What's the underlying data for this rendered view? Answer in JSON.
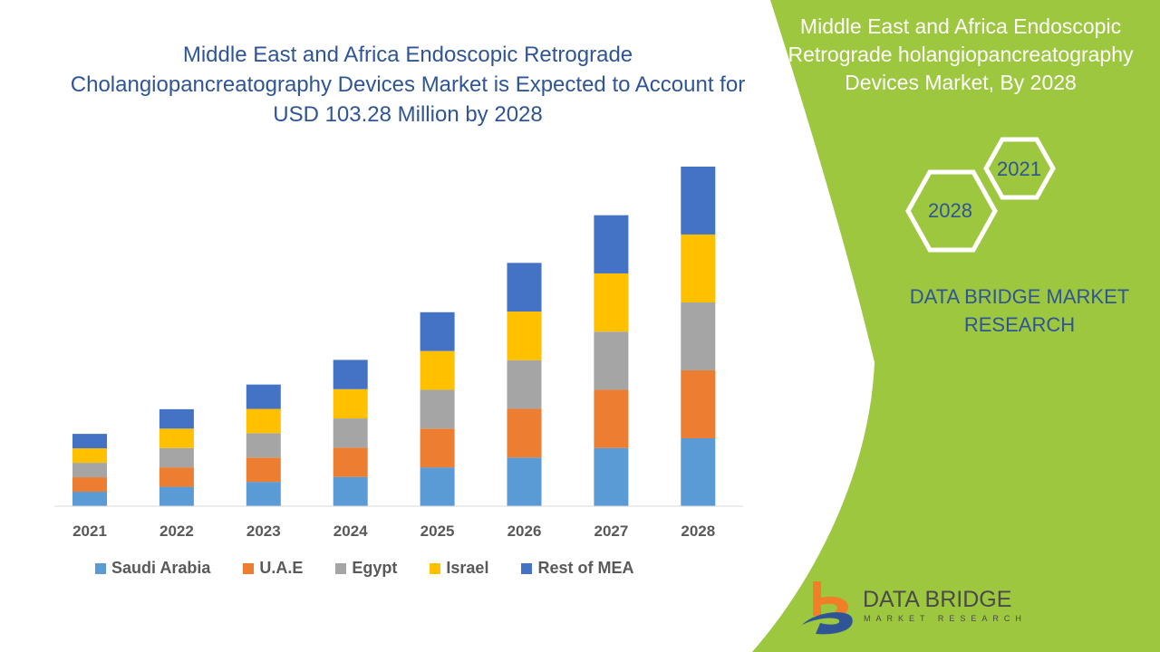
{
  "chart_data": {
    "type": "bar",
    "stacked": true,
    "title": "Middle East and Africa Endoscopic Retrograde Cholangiopancreatography Devices Market is Expected to Account for USD 103.28 Million by 2028",
    "categories": [
      "2021",
      "2022",
      "2023",
      "2024",
      "2025",
      "2026",
      "2027",
      "2028"
    ],
    "series": [
      {
        "name": "Saudi Arabia",
        "color": "#5b9bd5",
        "values": [
          4.4,
          5.9,
          7.4,
          8.9,
          11.8,
          14.8,
          17.7,
          20.66
        ]
      },
      {
        "name": "U.A.E",
        "color": "#ed7d31",
        "values": [
          4.4,
          5.9,
          7.4,
          8.9,
          11.8,
          14.8,
          17.7,
          20.66
        ]
      },
      {
        "name": "Egypt",
        "color": "#a5a5a5",
        "values": [
          4.4,
          5.9,
          7.4,
          8.9,
          11.8,
          14.8,
          17.7,
          20.66
        ]
      },
      {
        "name": "Israel",
        "color": "#ffc000",
        "values": [
          4.4,
          5.9,
          7.4,
          8.9,
          11.8,
          14.8,
          17.7,
          20.66
        ]
      },
      {
        "name": "Rest of MEA",
        "color": "#4472c4",
        "values": [
          4.4,
          5.9,
          7.4,
          8.9,
          11.8,
          14.8,
          17.7,
          20.64
        ]
      }
    ],
    "ylim": [
      0,
      103.28
    ],
    "grid": false,
    "legend": "bottom"
  },
  "side": {
    "title": "Middle East and Africa Endoscopic Retrograde holangiopancreatography Devices Market, By 2028",
    "hex1": "2021",
    "hex2": "2028",
    "brand": "DATA BRIDGE MARKET RESEARCH",
    "accent": "#9dc73f"
  },
  "logo": {
    "name": "DATA BRIDGE",
    "sub": "MARKET RESEARCH"
  }
}
